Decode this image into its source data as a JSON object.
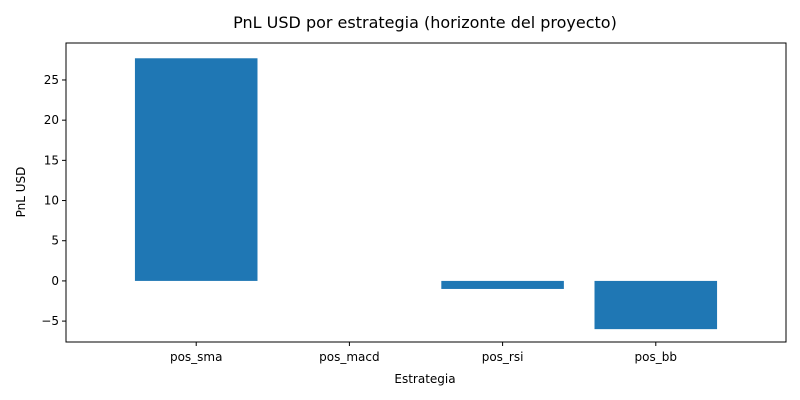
{
  "chart_data": {
    "type": "bar",
    "title": "PnL USD por estrategia (horizonte del proyecto)",
    "xlabel": "Estrategia",
    "ylabel": "PnL USD",
    "categories": [
      "pos_sma",
      "pos_macd",
      "pos_rsi",
      "pos_bb"
    ],
    "values": [
      27.7,
      0,
      -1.0,
      -6.0
    ],
    "ylim": [
      -7.6,
      29.6
    ],
    "yticks": [
      -5,
      0,
      5,
      10,
      15,
      20,
      25
    ],
    "ytick_labels": [
      "−5",
      "0",
      "5",
      "10",
      "15",
      "20",
      "25"
    ],
    "bar_color": "#1f77b4",
    "grid": false,
    "legend": "none"
  }
}
